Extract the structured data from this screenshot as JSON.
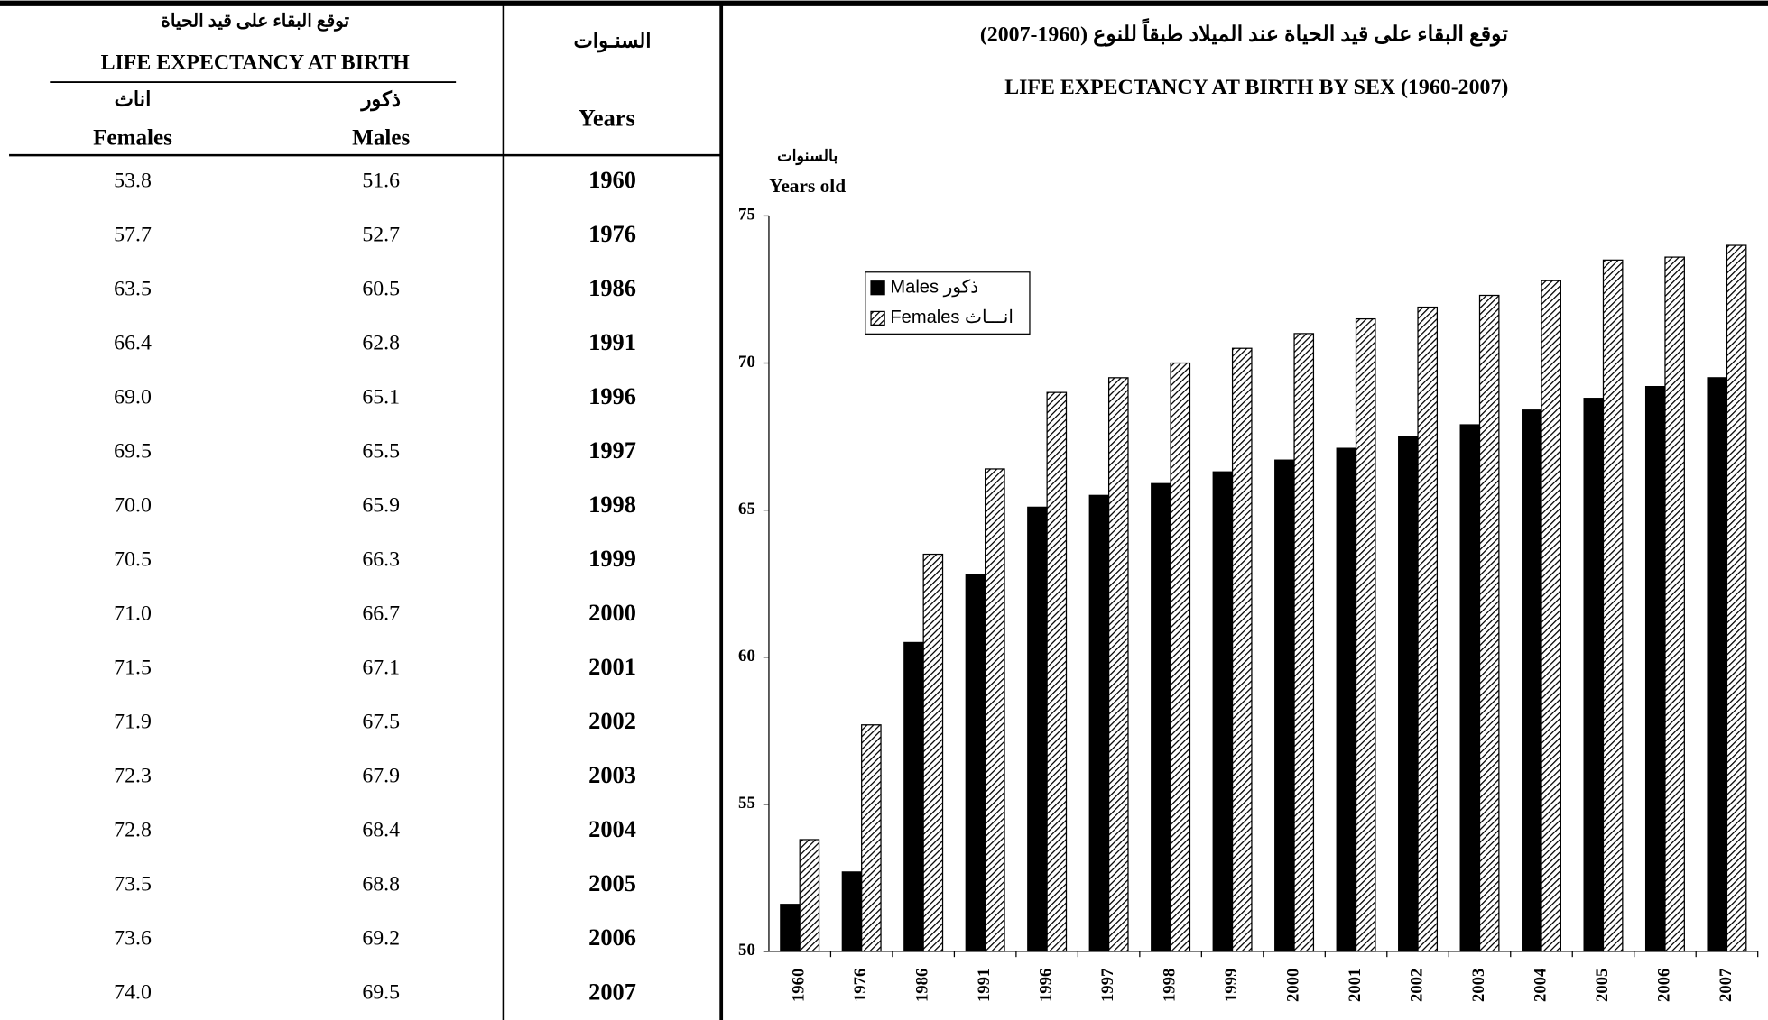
{
  "table": {
    "header": {
      "title_ar": "توقع البقاء على قيد الحياة",
      "title_en": "LIFE EXPECTANCY AT BIRTH",
      "females_ar": "اناث",
      "females_en": "Females",
      "males_ar": "ذكور",
      "males_en": "Males",
      "years_ar": "السنـوات",
      "years_en": "Years"
    },
    "rows": [
      [
        "53.8",
        "51.6",
        "1960"
      ],
      [
        "57.7",
        "52.7",
        "1976"
      ],
      [
        "63.5",
        "60.5",
        "1986"
      ],
      [
        "66.4",
        "62.8",
        "1991"
      ],
      [
        "69.0",
        "65.1",
        "1996"
      ],
      [
        "69.5",
        "65.5",
        "1997"
      ],
      [
        "70.0",
        "65.9",
        "1998"
      ],
      [
        "70.5",
        "66.3",
        "1999"
      ],
      [
        "71.0",
        "66.7",
        "2000"
      ],
      [
        "71.5",
        "67.1",
        "2001"
      ],
      [
        "71.9",
        "67.5",
        "2002"
      ],
      [
        "72.3",
        "67.9",
        "2003"
      ],
      [
        "72.8",
        "68.4",
        "2004"
      ],
      [
        "73.5",
        "68.8",
        "2005"
      ],
      [
        "73.6",
        "69.2",
        "2006"
      ],
      [
        "74.0",
        "69.5",
        "2007"
      ]
    ]
  },
  "chart_data": {
    "type": "bar",
    "title": "توقع البقاء على قيد الحياة عند الميلاد طبقاً للنوع (1960-2007)",
    "subtitle": "LIFE EXPECTANCY AT BIRTH BY SEX (1960-2007)",
    "y_label_ar": "بالسنوات",
    "y_label": "Years old",
    "categories": [
      "1960",
      "1976",
      "1986",
      "1991",
      "1996",
      "1997",
      "1998",
      "1999",
      "2000",
      "2001",
      "2002",
      "2003",
      "2004",
      "2005",
      "2006",
      "2007"
    ],
    "series": [
      {
        "name": "Males ذكور",
        "color": "#000000",
        "values": [
          51.6,
          52.7,
          60.5,
          62.8,
          65.1,
          65.5,
          65.9,
          66.3,
          66.7,
          67.1,
          67.5,
          67.9,
          68.4,
          68.8,
          69.2,
          69.5
        ]
      },
      {
        "name": "Females انـــاث",
        "color": "hatch",
        "values": [
          53.8,
          57.7,
          63.5,
          66.4,
          69.0,
          69.5,
          70.0,
          70.5,
          71.0,
          71.5,
          71.9,
          72.3,
          72.8,
          73.5,
          73.6,
          74.0
        ]
      }
    ],
    "ylim": [
      50,
      75
    ],
    "yticks": [
      50,
      55,
      60,
      65,
      70,
      75
    ],
    "legend": "upper-left"
  }
}
